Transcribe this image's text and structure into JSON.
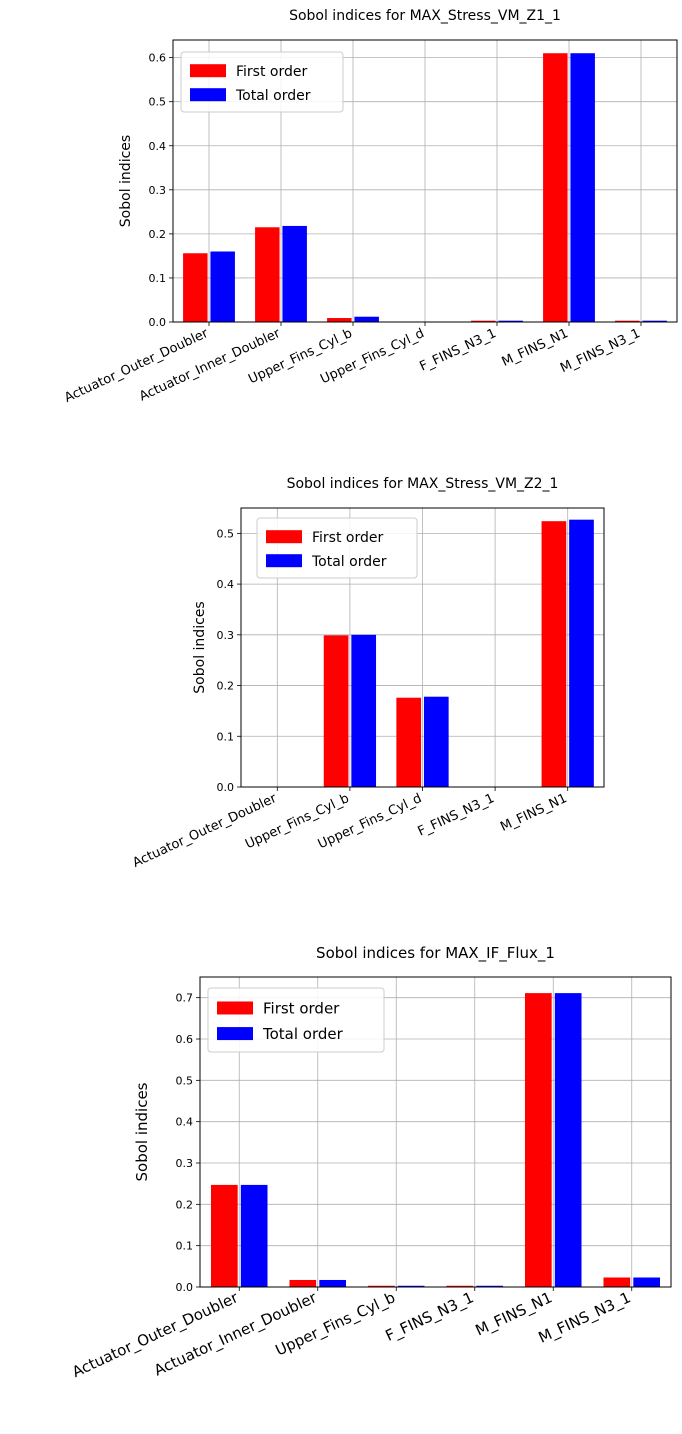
{
  "colors": {
    "first": "#ff0000",
    "total": "#0000ff",
    "grid": "#b0b0b0",
    "frame": "#000000"
  },
  "chart_data": [
    {
      "type": "bar",
      "title": "Sobol indices for MAX_Stress_VM_Z1_1",
      "ylabel": "Sobol indices",
      "xlabel": "",
      "ylim": [
        0,
        0.64
      ],
      "yticks": [
        "0.0",
        "0.1",
        "0.2",
        "0.3",
        "0.4",
        "0.5",
        "0.6"
      ],
      "grid": true,
      "legend_position": "top-left",
      "categories": [
        "Actuator_Outer_Doubler",
        "Actuator_Inner_Doubler",
        "Upper_Fins_Cyl_b",
        "Upper_Fins_Cyl_d",
        "F_FINS_N3_1",
        "M_FINS_N1",
        "M_FINS_N3_1"
      ],
      "series": [
        {
          "name": "First order",
          "color": "#ff0000",
          "values": [
            0.156,
            0.215,
            0.009,
            0.0,
            0.003,
            0.61,
            0.003
          ]
        },
        {
          "name": "Total order",
          "color": "#0000ff",
          "values": [
            0.16,
            0.218,
            0.012,
            0.0,
            0.003,
            0.61,
            0.003
          ]
        }
      ]
    },
    {
      "type": "bar",
      "title": "Sobol indices for MAX_Stress_VM_Z2_1",
      "ylabel": "Sobol indices",
      "xlabel": "",
      "ylim": [
        0,
        0.55
      ],
      "yticks": [
        "0.0",
        "0.1",
        "0.2",
        "0.3",
        "0.4",
        "0.5"
      ],
      "grid": true,
      "legend_position": "top-left",
      "categories": [
        "Actuator_Outer_Doubler",
        "Upper_Fins_Cyl_b",
        "Upper_Fins_Cyl_d",
        "F_FINS_N3_1",
        "M_FINS_N1"
      ],
      "series": [
        {
          "name": "First order",
          "color": "#ff0000",
          "values": [
            0.0,
            0.299,
            0.176,
            0.0,
            0.524
          ]
        },
        {
          "name": "Total order",
          "color": "#0000ff",
          "values": [
            0.0,
            0.3,
            0.178,
            0.0,
            0.527
          ]
        }
      ]
    },
    {
      "type": "bar",
      "title": "Sobol indices for MAX_IF_Flux_1",
      "ylabel": "Sobol indices",
      "xlabel": "",
      "ylim": [
        0,
        0.75
      ],
      "yticks": [
        "0.0",
        "0.1",
        "0.2",
        "0.3",
        "0.4",
        "0.5",
        "0.6",
        "0.7"
      ],
      "grid": true,
      "legend_position": "top-left",
      "categories": [
        "Actuator_Outer_Doubler",
        "Actuator_Inner_Doubler",
        "Upper_Fins_Cyl_b",
        "F_FINS_N3_1",
        "M_FINS_N1",
        "M_FINS_N3_1"
      ],
      "series": [
        {
          "name": "First order",
          "color": "#ff0000",
          "values": [
            0.247,
            0.017,
            0.003,
            0.003,
            0.711,
            0.023
          ]
        },
        {
          "name": "Total order",
          "color": "#0000ff",
          "values": [
            0.247,
            0.017,
            0.003,
            0.003,
            0.711,
            0.023
          ]
        }
      ]
    }
  ]
}
